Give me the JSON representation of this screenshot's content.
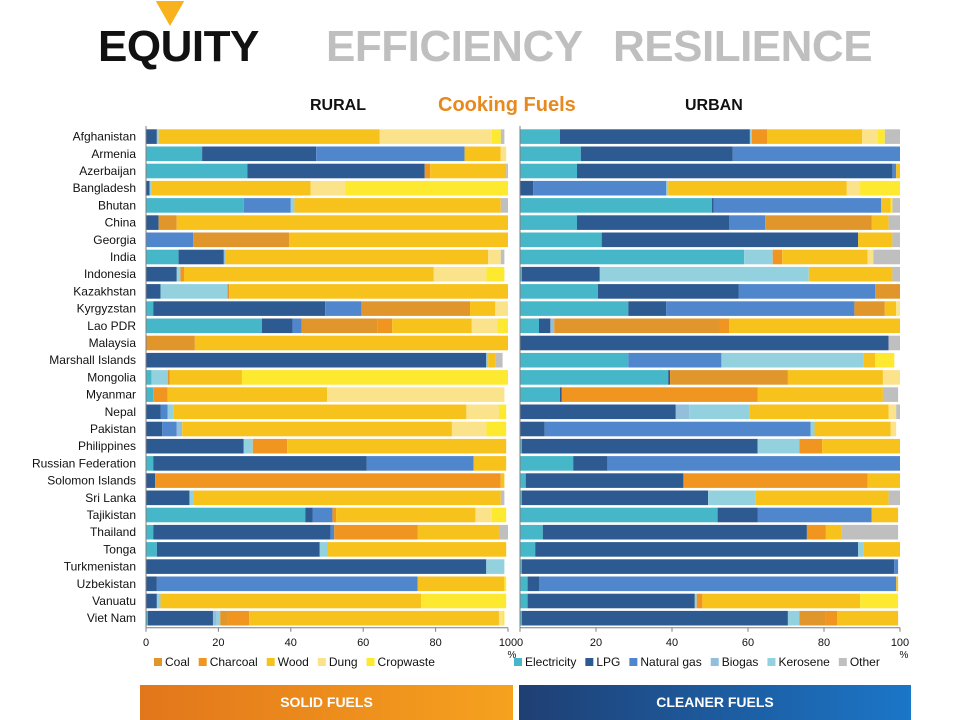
{
  "header": {
    "tabs": [
      {
        "label": "EQUITY",
        "active": true
      },
      {
        "label": "EFFICIENCY",
        "active": false
      },
      {
        "label": "RESILIENCE",
        "active": false
      }
    ],
    "accent_color": "#f7b21e"
  },
  "titles": {
    "main": "Cooking Fuels",
    "left_panel": "RURAL",
    "right_panel": "URBAN"
  },
  "footer": {
    "solid_label": "SOLID FUELS",
    "clean_label": "CLEANER FUELS"
  },
  "chart_data": {
    "type": "bar",
    "orientation": "horizontal",
    "stacked": true,
    "xlim": [
      0,
      100
    ],
    "xticks": [
      0,
      20,
      40,
      60,
      80,
      100
    ],
    "xunit": "%",
    "grid": false,
    "legend_position": "bottom",
    "colors": {
      "Electricity": "#45b7c9",
      "LPG": "#2c5a91",
      "Natural gas": "#4f86cc",
      "Biogas": "#93bfdd",
      "Kerosene": "#94d1de",
      "Other": "#bfbfbf",
      "Coal": "#e0962a",
      "Charcoal": "#f0951f",
      "Wood": "#f8c21c",
      "Dung": "#fae38a",
      "Cropwaste": "#fde92f"
    },
    "categories": [
      "Afghanistan",
      "Armenia",
      "Azerbaijan",
      "Bangladesh",
      "Bhutan",
      "China",
      "Georgia",
      "India",
      "Indonesia",
      "Kazakhstan",
      "Kyrgyzstan",
      "Lao PDR",
      "Malaysia",
      "Marshall Islands",
      "Mongolia",
      "Myanmar",
      "Nepal",
      "Pakistan",
      "Philippines",
      "Russian Federation",
      "Solomon Islands",
      "Sri Lanka",
      "Tajikistan",
      "Thailand",
      "Tonga",
      "Turkmenistan",
      "Uzbekistan",
      "Vanuatu",
      "Viet Nam"
    ],
    "charts": [
      {
        "panel": "RURAL",
        "legend": [
          "Coal",
          "Charcoal",
          "Wood",
          "Dung",
          "Cropwaste"
        ],
        "series_order": [
          "Electricity",
          "LPG",
          "Natural gas",
          "Biogas",
          "Kerosene",
          "Coal",
          "Charcoal",
          "Wood",
          "Dung",
          "Cropwaste",
          "Other"
        ],
        "rows": [
          {
            "LPG": 3,
            "Kerosene": 0.5,
            "Wood": 61,
            "Dung": 31,
            "Cropwaste": 2.5,
            "Other": 1
          },
          {
            "Electricity": 15.5,
            "LPG": 31.5,
            "Natural gas": 41,
            "Wood": 10,
            "Dung": 1.5
          },
          {
            "Electricity": 28,
            "LPG": 49,
            "Charcoal": 1.5,
            "Wood": 21,
            "Other": 0.5
          },
          {
            "LPG": 1,
            "Kerosene": 0.5,
            "Wood": 44,
            "Dung": 9.5,
            "Cropwaste": 45
          },
          {
            "Electricity": 27,
            "Natural gas": 13,
            "Kerosene": 1,
            "Wood": 57,
            "Other": 2
          },
          {
            "LPG": 3.5,
            "Coal": 5,
            "Wood": 91.5
          },
          {
            "Natural gas": 13,
            "Coal": 26.5,
            "Wood": 60.5
          },
          {
            "Electricity": 9,
            "LPG": 12.5,
            "Biogas": 0.5,
            "Wood": 72.5,
            "Dung": 3.5,
            "Other": 1
          },
          {
            "LPG": 8.5,
            "Kerosene": 1,
            "Charcoal": 1,
            "Wood": 69,
            "Dung": 14.5,
            "Cropwaste": 5
          },
          {
            "LPG": 4,
            "Kerosene": 18.5,
            "Coal": 0.5,
            "Wood": 77
          },
          {
            "Electricity": 2,
            "LPG": 47.5,
            "Natural gas": 10,
            "Coal": 30,
            "Wood": 7,
            "Dung": 3.5
          },
          {
            "Electricity": 32,
            "LPG": 8.5,
            "Natural gas": 2.5,
            "Coal": 21,
            "Charcoal": 4,
            "Wood": 22,
            "Dung": 7,
            "Cropwaste": 3
          },
          {
            "Coal": 13.5,
            "Wood": 86.5
          },
          {
            "LPG": 94,
            "Kerosene": 0.5,
            "Wood": 2,
            "Other": 2
          },
          {
            "Electricity": 1.5,
            "Kerosene": 4.5,
            "Coal": 0.5,
            "Wood": 20,
            "Cropwaste": 73.5
          },
          {
            "Electricity": 2,
            "Charcoal": 4,
            "Wood": 44,
            "Dung": 49
          },
          {
            "LPG": 4,
            "Natural gas": 2,
            "Kerosene": 1.5,
            "Wood": 81,
            "Dung": 9,
            "Cropwaste": 2
          },
          {
            "LPG": 4.5,
            "Natural gas": 4,
            "Biogas": 1.5,
            "Wood": 74.5,
            "Dung": 9.5,
            "Cropwaste": 5.5
          },
          {
            "LPG": 27,
            "Kerosene": 2.5,
            "Charcoal": 9.5,
            "Wood": 60.5
          },
          {
            "Electricity": 2,
            "LPG": 59,
            "Natural gas": 29.5,
            "Wood": 9
          },
          {
            "LPG": 2.5,
            "Charcoal": 95.5,
            "Wood": 1
          },
          {
            "LPG": 12,
            "Kerosene": 1,
            "Wood": 85,
            "Other": 1
          },
          {
            "Electricity": 44,
            "LPG": 2,
            "Natural gas": 5.5,
            "Charcoal": 1,
            "Wood": 38.5,
            "Dung": 4.5,
            "Cropwaste": 4
          },
          {
            "Electricity": 2,
            "LPG": 49,
            "Natural gas": 1,
            "Charcoal": 23,
            "Wood": 22.5,
            "Other": 2.5
          },
          {
            "Electricity": 3,
            "LPG": 45,
            "Kerosene": 2,
            "Wood": 49.5
          },
          {
            "LPG": 94,
            "Kerosene": 5
          },
          {
            "LPG": 3,
            "Natural gas": 72,
            "Wood": 24,
            "Cropwaste": 0.5
          },
          {
            "LPG": 3,
            "Kerosene": 1,
            "Wood": 72,
            "Cropwaste": 23.5
          },
          {
            "Electricity": 0.5,
            "LPG": 18,
            "Biogas": 1,
            "Kerosene": 1,
            "Coal": 2,
            "Charcoal": 6,
            "Wood": 69,
            "Dung": 1,
            "Cropwaste": 0.5
          }
        ]
      },
      {
        "panel": "URBAN",
        "legend": [
          "Electricity",
          "LPG",
          "Natural gas",
          "Biogas",
          "Kerosene",
          "Other"
        ],
        "series_order": [
          "Electricity",
          "LPG",
          "Natural gas",
          "Biogas",
          "Kerosene",
          "Coal",
          "Charcoal",
          "Wood",
          "Dung",
          "Cropwaste",
          "Other"
        ],
        "rows": [
          {
            "Electricity": 10.5,
            "LPG": 50,
            "Kerosene": 0.5,
            "Charcoal": 4,
            "Wood": 25,
            "Dung": 4,
            "Cropwaste": 2,
            "Other": 4
          },
          {
            "Electricity": 16,
            "LPG": 40,
            "Natural gas": 44
          },
          {
            "Electricity": 15,
            "LPG": 83,
            "Natural gas": 1,
            "Wood": 1
          },
          {
            "LPG": 3.5,
            "Natural gas": 35,
            "Kerosene": 0.5,
            "Wood": 47,
            "Dung": 3.5,
            "Cropwaste": 10.5
          },
          {
            "Electricity": 50.5,
            "LPG": 0.5,
            "Natural gas": 44,
            "Wood": 2.5,
            "Cropwaste": 0.5,
            "Other": 2
          },
          {
            "Electricity": 15,
            "LPG": 40,
            "Natural gas": 9.5,
            "Coal": 28,
            "Wood": 4.5,
            "Other": 3
          },
          {
            "Electricity": 21.5,
            "LPG": 67.5,
            "Wood": 9,
            "Other": 2
          },
          {
            "Electricity": 59,
            "Kerosene": 7.5,
            "Charcoal": 2.5,
            "Wood": 22.5,
            "Dung": 1.5,
            "Other": 7
          },
          {
            "Electricity": 0.5,
            "LPG": 20.5,
            "Kerosene": 55,
            "Wood": 22,
            "Other": 2
          },
          {
            "Electricity": 20.5,
            "LPG": 37,
            "Natural gas": 36,
            "Coal": 6.5
          },
          {
            "Electricity": 28.5,
            "LPG": 10,
            "Natural gas": 49.5,
            "Coal": 8,
            "Wood": 3,
            "Dung": 1
          },
          {
            "Electricity": 5,
            "LPG": 3,
            "Biogas": 1,
            "Coal": 43.5,
            "Charcoal": 2.5,
            "Wood": 45
          },
          {
            "LPG": 97,
            "Other": 3
          },
          {
            "Electricity": 28.5,
            "Natural gas": 24.5,
            "Kerosene": 37.5,
            "Wood": 3,
            "Cropwaste": 5
          },
          {
            "Electricity": 39,
            "LPG": 0.5,
            "Coal": 31,
            "Wood": 25,
            "Dung": 4.5
          },
          {
            "Electricity": 10.5,
            "LPG": 0.5,
            "Charcoal": 51.5,
            "Wood": 33,
            "Other": 4
          },
          {
            "LPG": 41,
            "Biogas": 3.5,
            "Kerosene": 16,
            "Wood": 36.5,
            "Dung": 2,
            "Other": 1
          },
          {
            "LPG": 6.5,
            "Natural gas": 70,
            "Kerosene": 1,
            "Wood": 20,
            "Dung": 1.5
          },
          {
            "Electricity": 0.5,
            "LPG": 62,
            "Kerosene": 11,
            "Charcoal": 6,
            "Wood": 20.5
          },
          {
            "Electricity": 14,
            "LPG": 9,
            "Natural gas": 77
          },
          {
            "Electricity": 1.5,
            "LPG": 41.5,
            "Charcoal": 48.5,
            "Wood": 8.5
          },
          {
            "Electricity": 0.5,
            "LPG": 49,
            "Kerosene": 12.5,
            "Wood": 35,
            "Other": 3
          },
          {
            "Electricity": 52,
            "LPG": 10.5,
            "Natural gas": 30,
            "Wood": 7
          },
          {
            "Electricity": 6,
            "LPG": 69.5,
            "Charcoal": 5,
            "Wood": 4,
            "Other": 15
          },
          {
            "Electricity": 4,
            "LPG": 85,
            "Kerosene": 1.5,
            "Wood": 9.5
          },
          {
            "Electricity": 0.5,
            "LPG": 98,
            "Natural gas": 1
          },
          {
            "Electricity": 2,
            "LPG": 3,
            "Natural gas": 94,
            "Wood": 0.5
          },
          {
            "Electricity": 2,
            "LPG": 44,
            "Kerosene": 0.5,
            "Charcoal": 1.5,
            "Wood": 41.5,
            "Cropwaste": 10
          },
          {
            "Electricity": 0.5,
            "LPG": 70,
            "Kerosene": 3,
            "Coal": 7,
            "Charcoal": 3,
            "Wood": 16
          }
        ]
      }
    ]
  }
}
